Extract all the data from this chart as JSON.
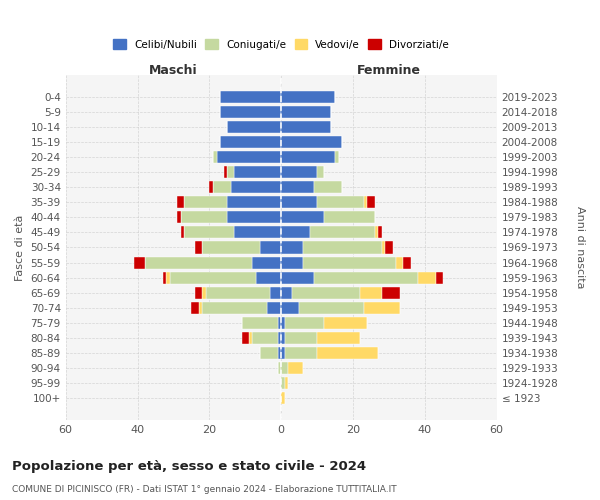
{
  "age_groups": [
    "100+",
    "95-99",
    "90-94",
    "85-89",
    "80-84",
    "75-79",
    "70-74",
    "65-69",
    "60-64",
    "55-59",
    "50-54",
    "45-49",
    "40-44",
    "35-39",
    "30-34",
    "25-29",
    "20-24",
    "15-19",
    "10-14",
    "5-9",
    "0-4"
  ],
  "birth_years": [
    "≤ 1923",
    "1924-1928",
    "1929-1933",
    "1934-1938",
    "1939-1943",
    "1944-1948",
    "1949-1953",
    "1954-1958",
    "1959-1963",
    "1964-1968",
    "1969-1973",
    "1974-1978",
    "1979-1983",
    "1984-1988",
    "1989-1993",
    "1994-1998",
    "1999-2003",
    "2004-2008",
    "2009-2013",
    "2014-2018",
    "2019-2023"
  ],
  "colors": {
    "celibi": "#4472c4",
    "coniugati": "#c5d9a0",
    "vedovi": "#ffd966",
    "divorziati": "#cc0000"
  },
  "maschi": {
    "celibi": [
      0,
      0,
      0,
      1,
      1,
      1,
      4,
      3,
      7,
      8,
      6,
      13,
      15,
      15,
      14,
      13,
      18,
      17,
      15,
      17,
      17
    ],
    "coniugati": [
      0,
      0,
      1,
      5,
      7,
      10,
      18,
      18,
      24,
      30,
      16,
      14,
      13,
      12,
      5,
      2,
      1,
      0,
      0,
      0,
      0
    ],
    "vedovi": [
      0,
      0,
      0,
      0,
      1,
      0,
      1,
      1,
      1,
      0,
      0,
      0,
      0,
      0,
      0,
      0,
      0,
      0,
      0,
      0,
      0
    ],
    "divorziati": [
      0,
      0,
      0,
      0,
      2,
      0,
      2,
      2,
      1,
      3,
      2,
      1,
      1,
      2,
      1,
      1,
      0,
      0,
      0,
      0,
      0
    ]
  },
  "femmine": {
    "celibi": [
      0,
      0,
      0,
      1,
      1,
      1,
      5,
      3,
      9,
      6,
      6,
      8,
      12,
      10,
      9,
      10,
      15,
      17,
      14,
      14,
      15
    ],
    "coniugati": [
      0,
      1,
      2,
      9,
      9,
      11,
      18,
      19,
      29,
      26,
      22,
      18,
      14,
      13,
      8,
      2,
      1,
      0,
      0,
      0,
      0
    ],
    "vedovi": [
      1,
      1,
      4,
      17,
      12,
      12,
      10,
      6,
      5,
      2,
      1,
      1,
      0,
      1,
      0,
      0,
      0,
      0,
      0,
      0,
      0
    ],
    "divorziati": [
      0,
      0,
      0,
      0,
      0,
      0,
      0,
      5,
      2,
      2,
      2,
      1,
      0,
      2,
      0,
      0,
      0,
      0,
      0,
      0,
      0
    ]
  },
  "xlim": 60,
  "title": "Popolazione per età, sesso e stato civile - 2024",
  "subtitle": "COMUNE DI PICINISCO (FR) - Dati ISTAT 1° gennaio 2024 - Elaborazione TUTTITALIA.IT",
  "ylabel_left": "Fasce di età",
  "ylabel_right": "Anni di nascita",
  "xlabel_left": "Maschi",
  "xlabel_right": "Femmine",
  "bg_color": "#ffffff",
  "grid_color": "#cccccc"
}
